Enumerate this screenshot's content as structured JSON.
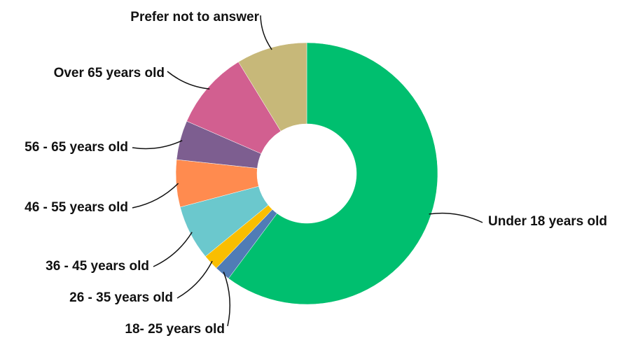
{
  "chart_data": {
    "type": "pie",
    "variant": "donut",
    "legend": "none",
    "slices": [
      {
        "label": "Under 18 years old",
        "value": 62.0,
        "color": "#00BF6F"
      },
      {
        "label": "18- 25 years old",
        "value": 2.0,
        "color": "#507CB6"
      },
      {
        "label": "26 - 35 years old",
        "value": 2.0,
        "color": "#F9BE00"
      },
      {
        "label": "36 - 45 years old",
        "value": 7.0,
        "color": "#6BC8CD"
      },
      {
        "label": "46 - 55 years old",
        "value": 6.0,
        "color": "#FF8B4F"
      },
      {
        "label": "56 - 65 years old",
        "value": 5.0,
        "color": "#7D5E90"
      },
      {
        "label": "Over 65 years old",
        "value": 10.0,
        "color": "#D25F90"
      },
      {
        "label": "Prefer not to answer",
        "value": 9.0,
        "color": "#C7B879"
      }
    ]
  }
}
